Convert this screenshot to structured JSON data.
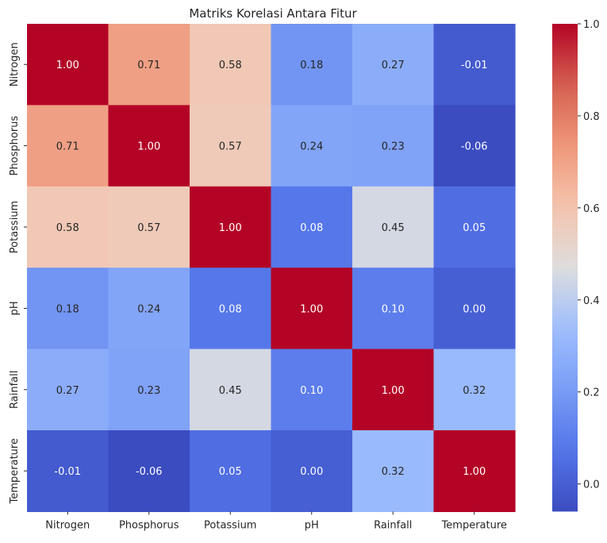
{
  "chart_data": {
    "type": "heatmap",
    "title": "Matriks Korelasi Antara Fitur",
    "x_labels": [
      "Nitrogen",
      "Phosphorus",
      "Potassium",
      "pH",
      "Rainfall",
      "Temperature"
    ],
    "y_labels": [
      "Nitrogen",
      "Phosphorus",
      "Potassium",
      "pH",
      "Rainfall",
      "Temperature"
    ],
    "values": [
      [
        1.0,
        0.71,
        0.58,
        0.18,
        0.27,
        -0.01
      ],
      [
        0.71,
        1.0,
        0.57,
        0.24,
        0.23,
        -0.06
      ],
      [
        0.58,
        0.57,
        1.0,
        0.08,
        0.45,
        0.05
      ],
      [
        0.18,
        0.24,
        0.08,
        1.0,
        0.1,
        -0.0
      ],
      [
        0.27,
        0.23,
        0.45,
        0.1,
        1.0,
        0.32
      ],
      [
        -0.01,
        -0.06,
        0.05,
        -0.0,
        0.32,
        1.0
      ]
    ],
    "colormap": "coolwarm",
    "color_range": [
      -0.06,
      1.0
    ],
    "colorbar_ticks": [
      "0.0",
      "0.2",
      "0.4",
      "0.6",
      "0.8",
      "1.0"
    ],
    "colorbar_tick_values": [
      0.0,
      0.2,
      0.4,
      0.6,
      0.8,
      1.0
    ],
    "annotation_format": "0.00",
    "colors": {
      "low": "#3b4cc0",
      "mid": "#dddddd",
      "high": "#b40426"
    }
  }
}
